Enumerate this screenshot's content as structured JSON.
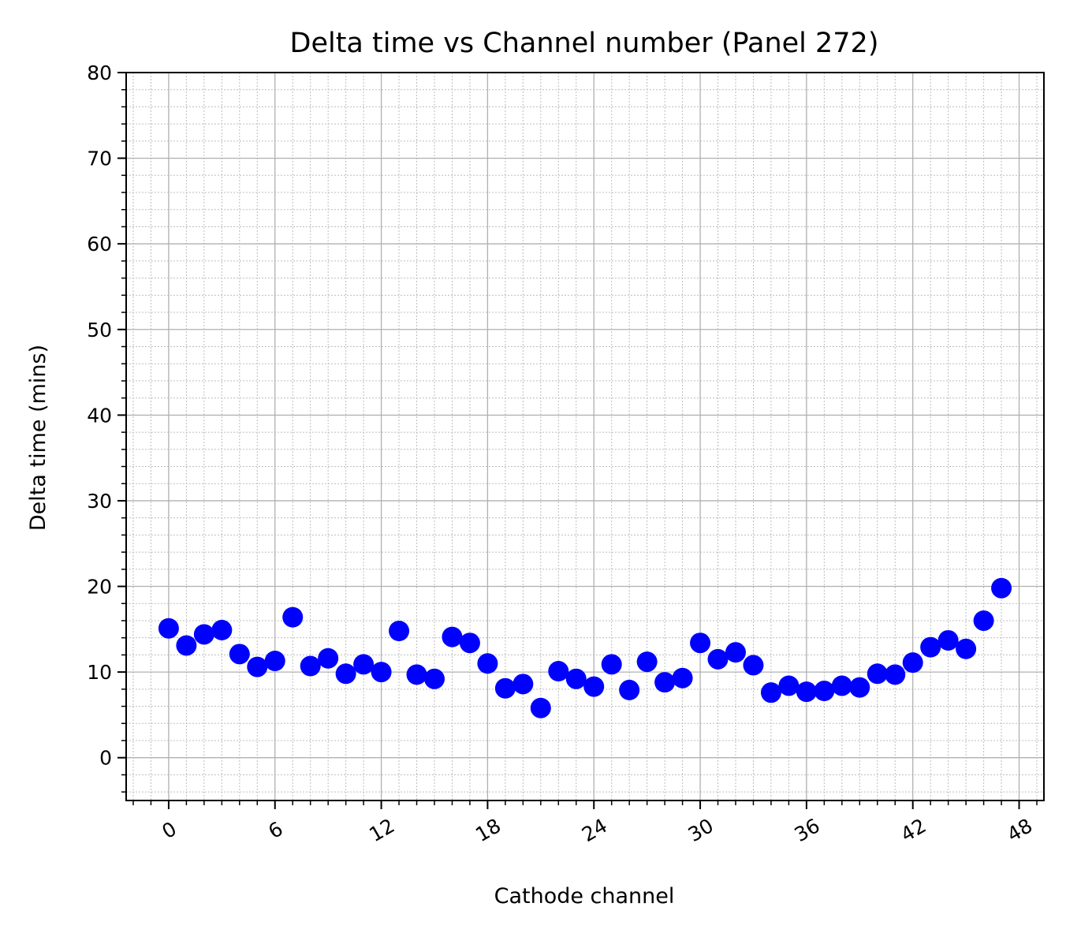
{
  "chart_data": {
    "type": "scatter",
    "title": "Delta time vs Channel number (Panel 272)",
    "xlabel": "Cathode channel",
    "ylabel": "Delta time (mins)",
    "xlim": [
      -2.4,
      49.4
    ],
    "ylim": [
      -5,
      80
    ],
    "x_ticks": [
      0,
      6,
      12,
      18,
      24,
      30,
      36,
      42,
      48
    ],
    "x_tick_labels": [
      "0",
      "6",
      "12",
      "18",
      "24",
      "30",
      "36",
      "42",
      "48"
    ],
    "x_minor_step": 1,
    "y_ticks": [
      0,
      10,
      20,
      30,
      40,
      50,
      60,
      70,
      80
    ],
    "y_tick_labels": [
      "0",
      "10",
      "20",
      "30",
      "40",
      "50",
      "60",
      "70",
      "80"
    ],
    "y_minor_step": 2,
    "grid": true,
    "marker_color": "#0000ff",
    "series": [
      {
        "x": [
          0,
          1,
          2,
          3,
          4,
          5,
          6,
          7,
          8,
          9,
          10,
          11,
          12,
          13,
          14,
          15,
          16,
          17,
          18,
          19,
          20,
          21,
          22,
          23,
          24,
          25,
          26,
          27,
          28,
          29,
          30,
          31,
          32,
          33,
          34,
          35,
          36,
          37,
          38,
          39,
          40,
          41,
          42,
          43,
          44,
          45,
          46,
          47
        ],
        "y": [
          15.1,
          13.1,
          14.4,
          14.9,
          12.1,
          10.6,
          11.3,
          16.4,
          10.7,
          11.6,
          9.8,
          10.9,
          10.0,
          14.8,
          9.7,
          9.2,
          14.1,
          13.4,
          11.0,
          8.1,
          8.6,
          5.8,
          10.1,
          9.2,
          8.3,
          10.9,
          7.9,
          11.2,
          8.8,
          9.3,
          13.4,
          11.5,
          12.3,
          10.8,
          7.6,
          8.4,
          7.7,
          7.8,
          8.4,
          8.2,
          9.8,
          9.7,
          11.1,
          12.9,
          13.7,
          12.7,
          16.0,
          19.8
        ]
      }
    ]
  }
}
